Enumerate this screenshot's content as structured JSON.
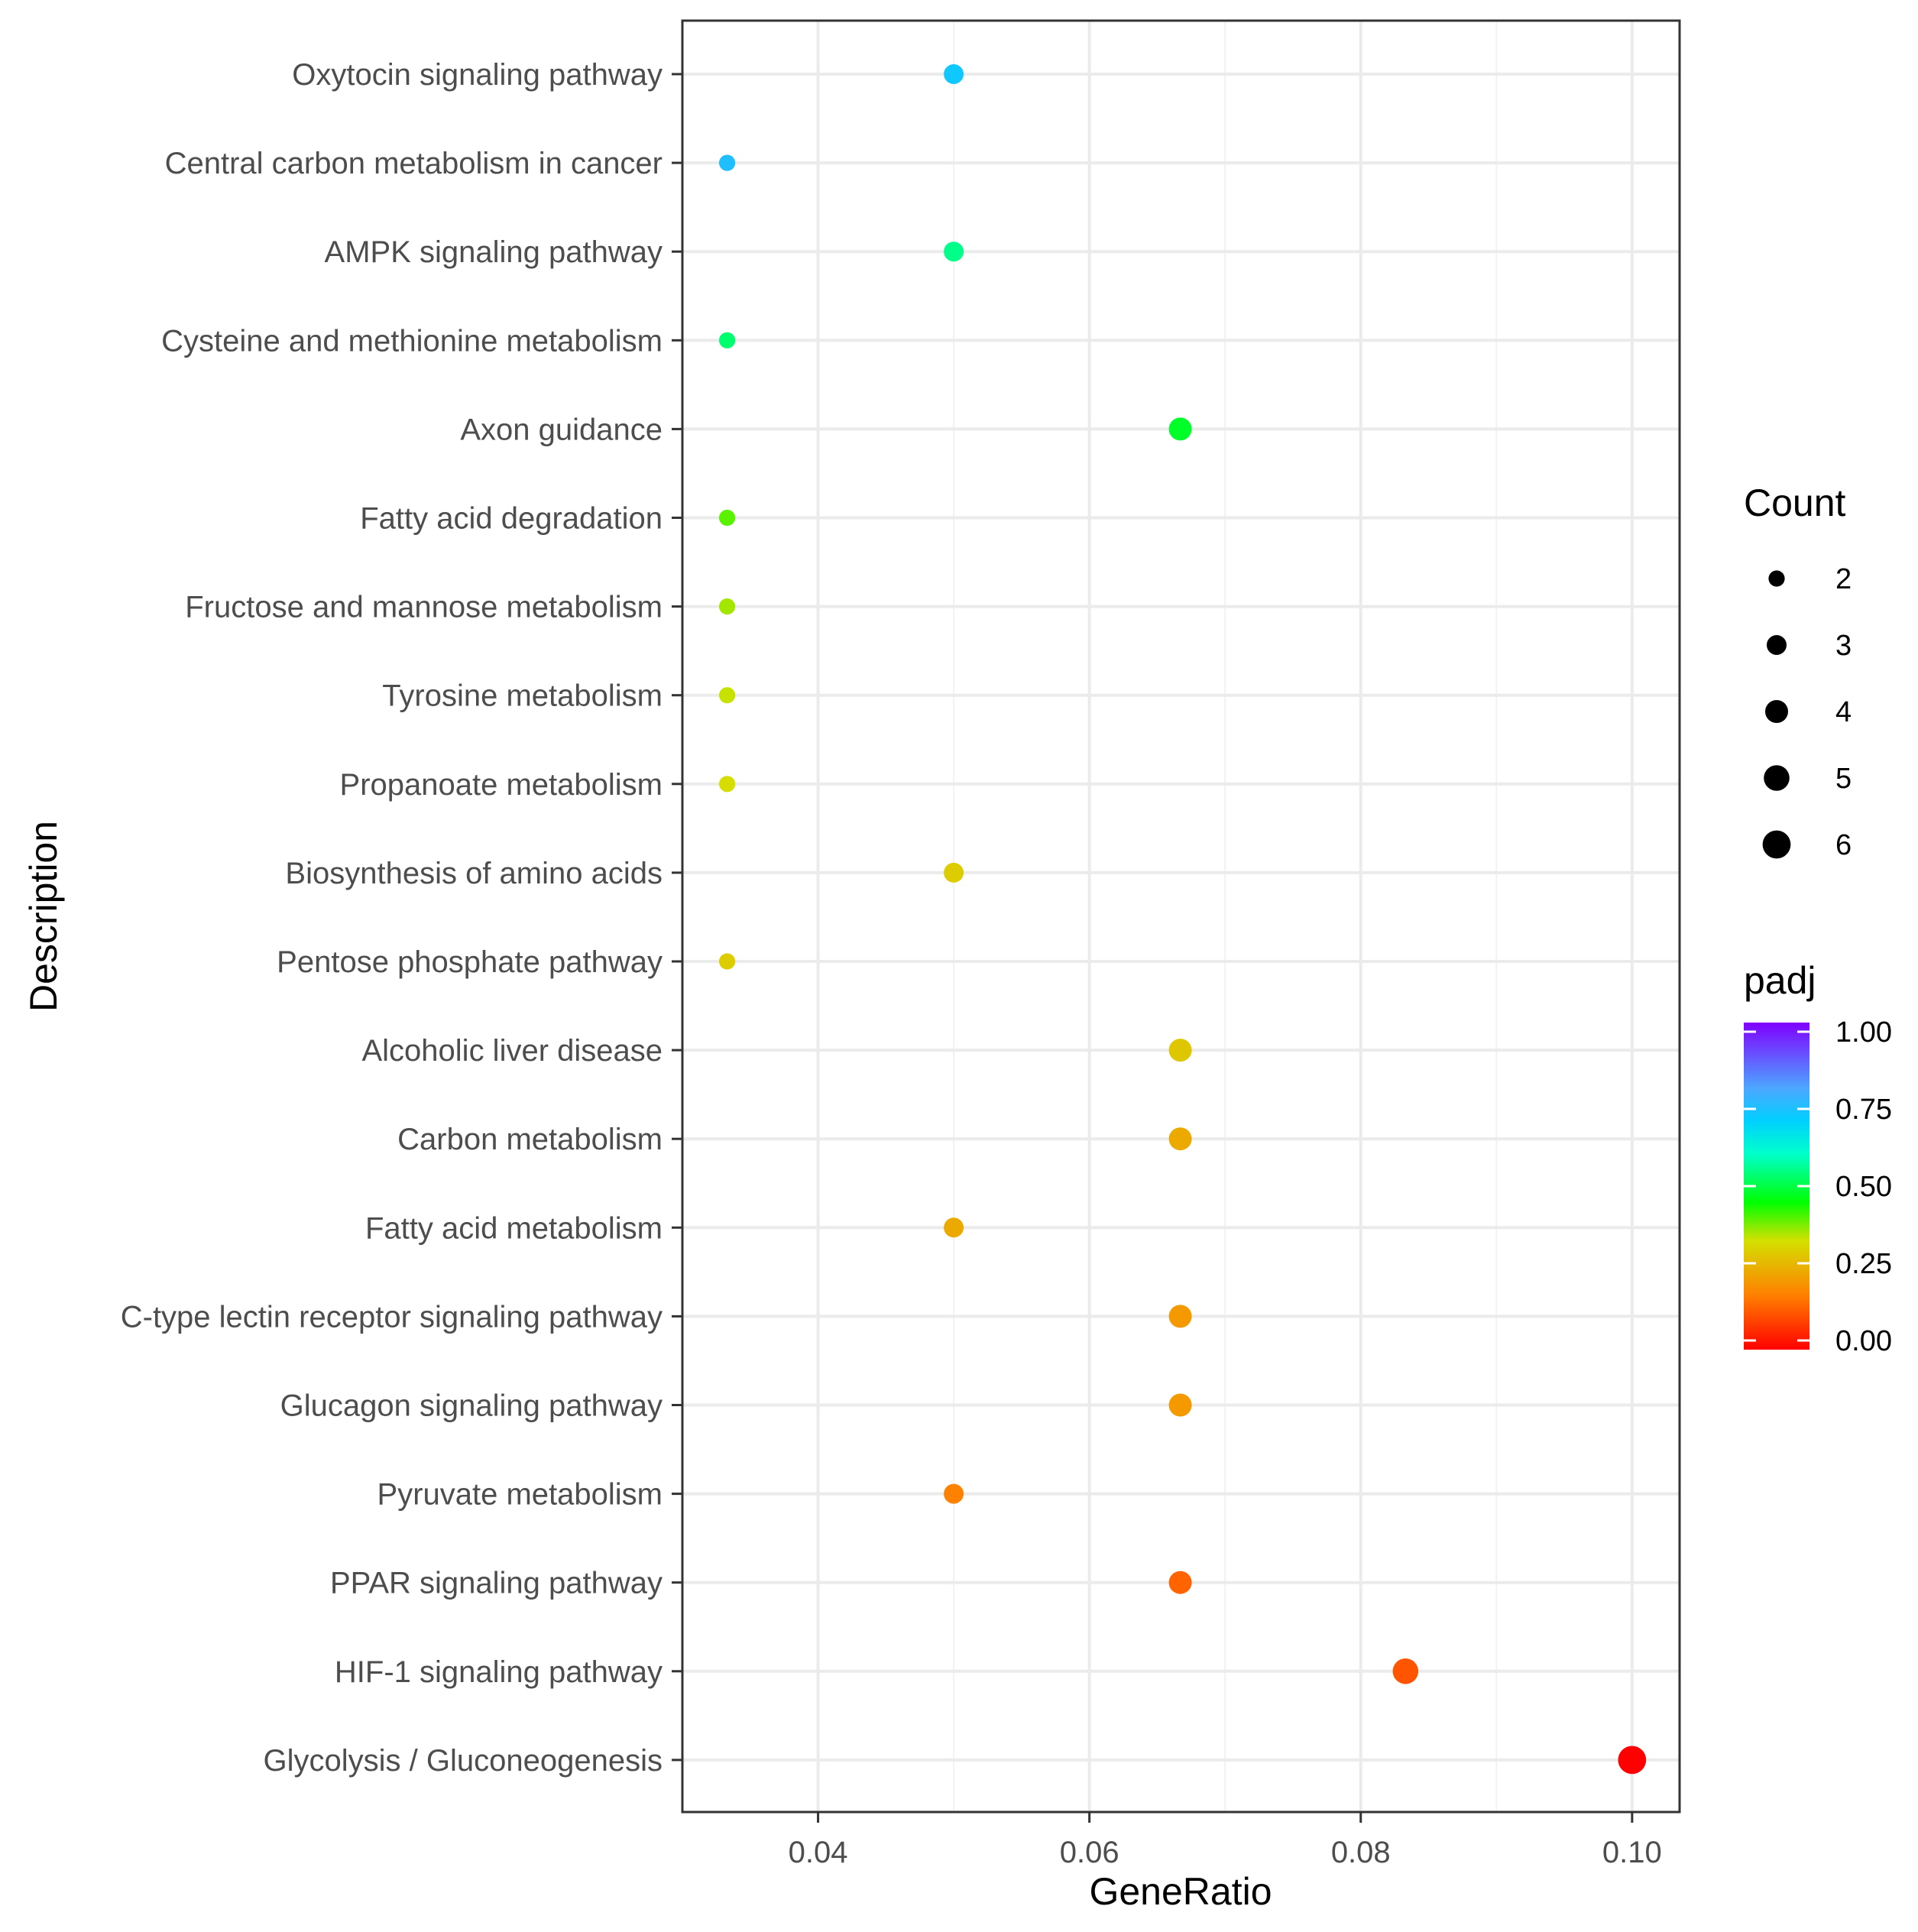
{
  "chart_data": {
    "type": "scatter",
    "title": "",
    "xlabel": "GeneRatio",
    "ylabel": "Description",
    "xlim": [
      0.03,
      0.1035
    ],
    "xticks": [
      0.04,
      0.06,
      0.08,
      0.1
    ],
    "xtick_labels": [
      "0.04",
      "0.06",
      "0.08",
      "0.10"
    ],
    "categories": [
      "Oxytocin signaling pathway",
      "Central carbon metabolism in cancer",
      "AMPK signaling pathway",
      "Cysteine and methionine metabolism",
      "Axon guidance",
      "Fatty acid degradation",
      "Fructose and mannose metabolism",
      "Tyrosine metabolism",
      "Propanoate metabolism",
      "Biosynthesis of amino acids",
      "Pentose phosphate pathway",
      "Alcoholic liver disease",
      "Carbon metabolism",
      "Fatty acid metabolism",
      "C-type lectin receptor signaling pathway",
      "Glucagon signaling pathway",
      "Pyruvate metabolism",
      "PPAR signaling pathway",
      "HIF-1 signaling pathway",
      "Glycolysis / Gluconeogenesis"
    ],
    "gene_ratio": [
      0.05,
      0.0333,
      0.05,
      0.0333,
      0.0667,
      0.0333,
      0.0333,
      0.0333,
      0.0333,
      0.05,
      0.0333,
      0.0667,
      0.0667,
      0.05,
      0.0667,
      0.0667,
      0.05,
      0.0667,
      0.0833,
      0.1
    ],
    "count": [
      3,
      2,
      3,
      2,
      4,
      2,
      2,
      2,
      2,
      3,
      2,
      4,
      4,
      3,
      4,
      4,
      3,
      4,
      5,
      6
    ],
    "padj": [
      0.72,
      0.74,
      0.55,
      0.53,
      0.48,
      0.4,
      0.36,
      0.34,
      0.33,
      0.3,
      0.3,
      0.29,
      0.24,
      0.24,
      0.21,
      0.21,
      0.17,
      0.13,
      0.11,
      0.0
    ],
    "size_legend": {
      "title": "Count",
      "values": [
        2,
        3,
        4,
        5,
        6
      ],
      "labels": [
        "2",
        "3",
        "4",
        "5",
        "6"
      ]
    },
    "color_legend": {
      "title": "padj",
      "range": [
        0.0,
        1.0
      ],
      "ticks": [
        1.0,
        0.75,
        0.5,
        0.25,
        0.0
      ],
      "labels": [
        "1.00",
        "0.75",
        "0.50",
        "0.25",
        "0.00"
      ],
      "colors": [
        "#ff0000",
        "#ff8000",
        "#ffff00",
        "#00ff00",
        "#00ffff",
        "#0080ff",
        "#8000ff"
      ]
    }
  }
}
